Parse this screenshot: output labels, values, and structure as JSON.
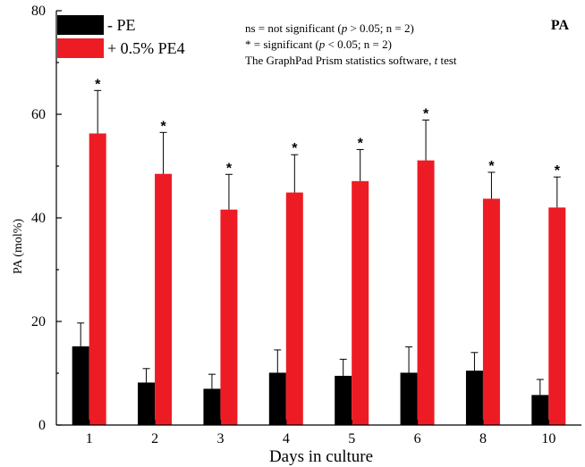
{
  "panel_label": "PA",
  "legend": [
    {
      "label": "- PE",
      "color": "#000000"
    },
    {
      "label": "+ 0.5% PE4",
      "color": "#ed1c24"
    }
  ],
  "notes": [
    {
      "parts": [
        {
          "t": "ns = not significant ("
        },
        {
          "t": "p",
          "i": true
        },
        {
          "t": " > 0.05; n = 2)"
        }
      ]
    },
    {
      "parts": [
        {
          "t": "* = significant ("
        },
        {
          "t": "p",
          "i": true
        },
        {
          "t": " < 0.05; n = 2)"
        }
      ]
    },
    {
      "parts": [
        {
          "t": "The GraphPad Prism statistics software, "
        },
        {
          "t": "t",
          "i": true
        },
        {
          "t": " test"
        }
      ]
    }
  ],
  "chart_data": {
    "type": "bar",
    "xlabel": "Days in culture",
    "ylabel": "PA (mol%)",
    "ylim": [
      0,
      80
    ],
    "yticks": [
      0,
      20,
      40,
      60,
      80
    ],
    "categories": [
      "1",
      "2",
      "3",
      "4",
      "5",
      "6",
      "8",
      "10"
    ],
    "series": [
      {
        "name": "- PE",
        "color": "#000000",
        "values": [
          15.2,
          8.2,
          7.0,
          10.1,
          9.5,
          10.1,
          10.5,
          5.8
        ],
        "errors": [
          4.5,
          2.7,
          2.8,
          4.4,
          3.2,
          5.0,
          3.5,
          3.0
        ]
      },
      {
        "name": "+ 0.5% PE4",
        "color": "#ed1c24",
        "values": [
          56.3,
          48.5,
          41.6,
          44.9,
          47.1,
          51.1,
          43.7,
          42.0
        ],
        "errors": [
          8.3,
          8.0,
          6.8,
          7.3,
          6.1,
          7.8,
          5.1,
          5.9
        ],
        "significance": [
          "*",
          "*",
          "*",
          "*",
          "*",
          "*",
          "*",
          "*"
        ]
      }
    ],
    "grid": false,
    "legend_position": "top-left"
  }
}
